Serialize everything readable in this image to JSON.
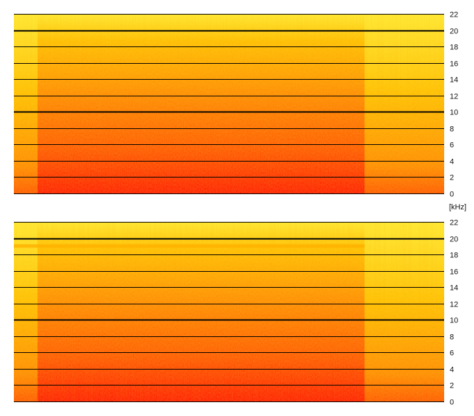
{
  "chart_data": [
    {
      "type": "heatmap",
      "title": "",
      "xlabel": "",
      "ylabel": "[kHz]",
      "ylim": [
        0,
        22
      ],
      "yticks": [
        0,
        2,
        4,
        6,
        8,
        10,
        12,
        14,
        16,
        18,
        20,
        22
      ],
      "y_tick_labels": [
        "0",
        "2",
        "4",
        "6",
        "8",
        "10",
        "12",
        "14",
        "16",
        "18",
        "20",
        "22"
      ],
      "emphasized_gridlines_khz": [
        10,
        20
      ],
      "grid": true,
      "colormap": [
        "#ff1e00",
        "#ff5a00",
        "#ff8c00",
        "#ffbf00",
        "#ffe830"
      ],
      "active_segment": {
        "start_fraction": 0.055,
        "end_fraction": 0.815
      },
      "narrow_band_khz": null
    },
    {
      "type": "heatmap",
      "title": "",
      "xlabel": "",
      "ylabel": "",
      "ylim": [
        0,
        22
      ],
      "yticks": [
        0,
        2,
        4,
        6,
        8,
        10,
        12,
        14,
        16,
        18,
        20,
        22
      ],
      "y_tick_labels": [
        "0",
        "2",
        "4",
        "6",
        "8",
        "10",
        "12",
        "14",
        "16",
        "18",
        "20",
        "22"
      ],
      "emphasized_gridlines_khz": [
        10,
        20
      ],
      "grid": true,
      "colormap": [
        "#ff1e00",
        "#ff5a00",
        "#ff8c00",
        "#ffbf00",
        "#ffe830"
      ],
      "active_segment": {
        "start_fraction": 0.055,
        "end_fraction": 0.815
      },
      "narrow_band_khz": 19
    }
  ],
  "axis": {
    "unit_label": "[kHz]"
  }
}
